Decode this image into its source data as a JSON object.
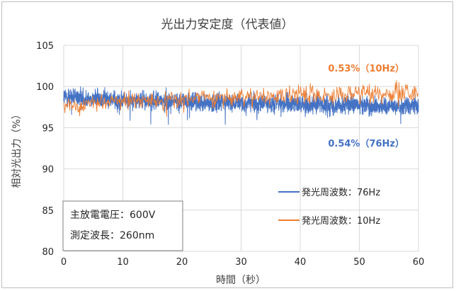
{
  "chart_data": {
    "type": "line",
    "title": "光出力安定度（代表値）",
    "xlabel": "時間（秒）",
    "ylabel": "相対光出力（%）",
    "xlim": [
      0,
      60
    ],
    "ylim": [
      80,
      105
    ],
    "x_ticks": [
      0,
      10,
      20,
      30,
      40,
      50,
      60
    ],
    "y_ticks": [
      80,
      85,
      90,
      95,
      100,
      105
    ],
    "grid": true,
    "legend_position": "bottom-right",
    "series": [
      {
        "name": "発光周波数：76Hz",
        "color": "#4472C4",
        "sample_rate_hz": 76,
        "mean_start": 98.8,
        "mean_end": 97.6,
        "noise_amplitude": 0.54
      },
      {
        "name": "発光周波数：10Hz",
        "color": "#ED7D31",
        "sample_rate_hz": 10,
        "mean_start": 97.6,
        "mean_end": 99.3,
        "noise_amplitude": 0.53
      }
    ],
    "annotations": [
      {
        "text": "0.53%（10Hz）",
        "color": "#ED7D31"
      },
      {
        "text": "0.54%（76Hz）",
        "color": "#4472C4"
      }
    ],
    "info_box": [
      "主放電電圧：600V",
      "測定波長：260nm"
    ]
  }
}
